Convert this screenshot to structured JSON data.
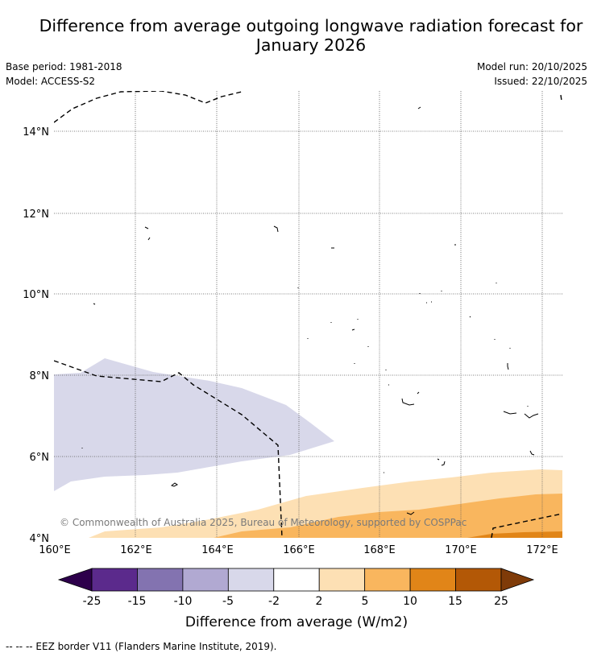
{
  "title_line1": "Difference from average outgoing longwave radiation forecast for",
  "title_line2": "January 2026",
  "meta": {
    "base_period": "Base period: 1981-2018",
    "model": "Model: ACCESS-S2",
    "model_run": "Model run: 20/10/2025",
    "issued": "Issued: 22/10/2025"
  },
  "map": {
    "lat_labels": [
      "14°N",
      "12°N",
      "10°N",
      "8°N",
      "6°N",
      "4°N"
    ],
    "lon_labels": [
      "160°E",
      "162°E",
      "164°E",
      "166°E",
      "168°E",
      "170°E",
      "172°E"
    ],
    "copyright": "© Commonwealth of Australia 2025, Bureau of Meteorology, supported by COSPPac"
  },
  "colorbar": {
    "ticks": [
      "-25",
      "-15",
      "-10",
      "-5",
      "-2",
      "2",
      "5",
      "10",
      "15",
      "25"
    ],
    "colors": [
      "#5b2a8c",
      "#8373b0",
      "#b1a9d2",
      "#d8d8ea",
      "#ffffff",
      "#fde0b4",
      "#f9b65e",
      "#e18518",
      "#b35806"
    ],
    "under_color": "#2d004b",
    "over_color": "#7f3b08",
    "label": "Difference from average (W/m2)"
  },
  "footnote": "--  --  -- EEZ border V11 (Flanders Marine Institute, 2019)."
}
